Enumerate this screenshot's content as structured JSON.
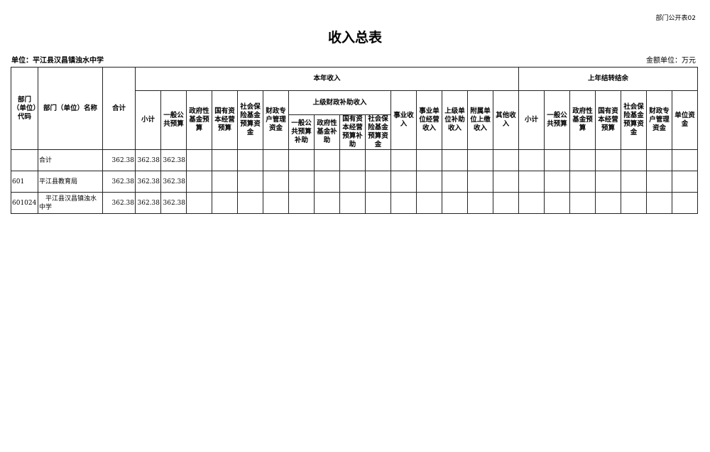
{
  "corner_label": "部门公开表02",
  "title": "收入总表",
  "unit_label": "单位：平江县汉昌镇浊水中学",
  "amount_unit": "金额单位：万元",
  "headers": {
    "code": "部门（单位）代码",
    "name": "部门（单位）名称",
    "total": "合计",
    "current_year": "本年收入",
    "prior_year": "上年结转结余",
    "cy": {
      "subtotal": "小计",
      "general": "一般公共预算",
      "gov_fund": "政府性基金预算",
      "state_capital": "国有资本经营预算",
      "social_insurance": "社会保险基金预算资金",
      "special_account": "财政专户管理资金",
      "upper_subsidy": "上级财政补助收入",
      "upper": {
        "general": "一般公共预算补助",
        "gov_fund": "政府性基金补助",
        "state_capital": "国有资本经营预算补助",
        "social_insurance": "社会保险基金预算资金"
      },
      "business": "事业收入",
      "operating": "事业单位经营收入",
      "upper_unit": "上级单位补助收入",
      "affiliated": "附属单位上缴收入",
      "other": "其他收入"
    },
    "py": {
      "subtotal": "小计",
      "general": "一般公共预算",
      "gov_fund": "政府性基金预算",
      "state_capital": "国有资本经营预算",
      "social_insurance": "社会保险基金预算资金",
      "special_account": "财政专户管理资金",
      "unit_fund": "单位资金"
    }
  },
  "rows": [
    {
      "code": "",
      "name": "合计",
      "total": "362.38",
      "subtotal": "362.38",
      "general": "362.38"
    },
    {
      "code": "601",
      "name": "平江县教育局",
      "total": "362.38",
      "subtotal": "362.38",
      "general": "362.38"
    },
    {
      "code": "601024",
      "name": "　平江县汉昌镇浊水中学",
      "total": "362.38",
      "subtotal": "362.38",
      "general": "362.38"
    }
  ]
}
